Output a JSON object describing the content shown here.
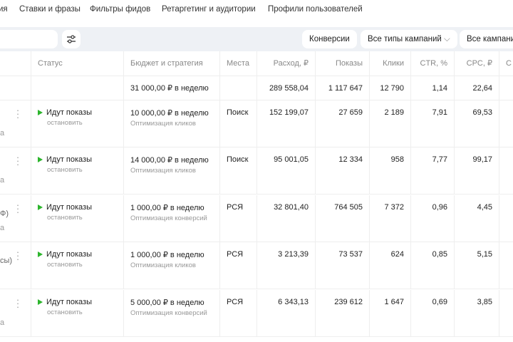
{
  "tabs": [
    "ия",
    "Ставки и фразы",
    "Фильтры фидов",
    "Ретаргетинг и аудитории",
    "Профили пользователей"
  ],
  "toolbar": {
    "conversions": "Конверсии",
    "campaign_types": "Все типы кампаний",
    "campaigns": "Все кампани"
  },
  "columns": [
    "Статус",
    "Бюджет и стратегия",
    "Места",
    "Расход, ₽",
    "Показы",
    "Клики",
    "CTR, %",
    "CPC, ₽",
    "С"
  ],
  "totals": {
    "budget": "31 000,00 ₽ в неделю",
    "spend": "289 558,04",
    "shows": "1 117 647",
    "clicks": "12 790",
    "ctr": "1,14",
    "cpc": "22,64"
  },
  "rows": [
    {
      "l1": "",
      "l2": "а",
      "status": "Идут показы",
      "action": "остановить",
      "budget": "10 000,00 ₽ в неделю",
      "strategy": "Оптимизация кликов",
      "place": "Поиск",
      "spend": "152 199,07",
      "shows": "27 659",
      "clicks": "2 189",
      "ctr": "7,91",
      "cpc": "69,53"
    },
    {
      "l1": "",
      "l2": "а",
      "status": "Идут показы",
      "action": "остановить",
      "budget": "14 000,00 ₽ в неделю",
      "strategy": "Оптимизация кликов",
      "place": "Поиск",
      "spend": "95 001,05",
      "shows": "12 334",
      "clicks": "958",
      "ctr": "7,77",
      "cpc": "99,17"
    },
    {
      "l1": "Ф)",
      "l2": "а",
      "status": "Идут показы",
      "action": "остановить",
      "budget": "1 000,00 ₽ в неделю",
      "strategy": "Оптимизация конверсий",
      "place": "РСЯ",
      "spend": "32 801,40",
      "shows": "764 505",
      "clicks": "7 372",
      "ctr": "0,96",
      "cpc": "4,45"
    },
    {
      "l1": "сы)",
      "l2": "",
      "status": "Идут показы",
      "action": "остановить",
      "budget": "1 000,00 ₽ в неделю",
      "strategy": "Оптимизация кликов",
      "place": "РСЯ",
      "spend": "3 213,39",
      "shows": "73 537",
      "clicks": "624",
      "ctr": "0,85",
      "cpc": "5,15"
    },
    {
      "l1": "",
      "l2": "а",
      "status": "Идут показы",
      "action": "остановить",
      "budget": "5 000,00 ₽ в неделю",
      "strategy": "Оптимизация конверсий",
      "place": "РСЯ",
      "spend": "6 343,13",
      "shows": "239 612",
      "clicks": "1 647",
      "ctr": "0,69",
      "cpc": "3,85"
    }
  ]
}
